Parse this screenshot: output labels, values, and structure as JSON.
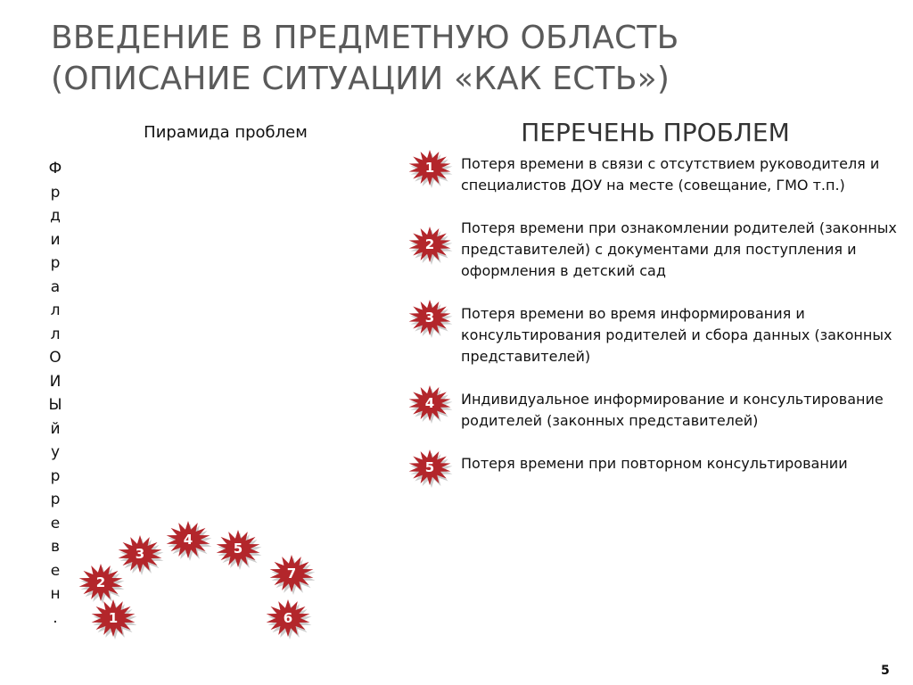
{
  "title_lines": [
    "ВВЕДЕНИЕ В ПРЕДМЕТНУЮ ОБЛАСТЬ",
    "(ОПИСАНИЕ СИТУАЦИИ «КАК ЕСТЬ»)"
  ],
  "pyramid": {
    "title": "Пирамида проблем",
    "vertical_letters": [
      "Ф",
      "р",
      "д",
      "и",
      "р",
      "а",
      "л",
      "л",
      "О",
      "И",
      "Ы",
      "й",
      "у",
      "р",
      "р",
      "е",
      "в",
      "е",
      "н",
      "."
    ],
    "stars": [
      "1",
      "2",
      "3",
      "4",
      "5",
      "6",
      "7"
    ]
  },
  "problems": {
    "title": "ПЕРЕЧЕНЬ ПРОБЛЕМ",
    "items": [
      {
        "num": "1",
        "text": "Потеря времени в связи с отсутствием руководителя и специалистов ДОУ на месте (совещание, ГМО т.п.)"
      },
      {
        "num": "2",
        "text": "Потеря времени при  ознакомлении родителей (законных представителей) с  документами для поступления и оформления в детский сад"
      },
      {
        "num": "3",
        "text": "Потеря времени во время информирования и консультирования родителей и сбора данных (законных представителей)"
      },
      {
        "num": "4",
        "text": "Индивидуальное информирование и консультирование родителей (законных представителей)"
      },
      {
        "num": "5",
        "text": "Потеря времени при повторном консультировании"
      }
    ]
  },
  "colors": {
    "star": "#b3262b",
    "title": "#5a5a5a"
  },
  "page_number": "5"
}
